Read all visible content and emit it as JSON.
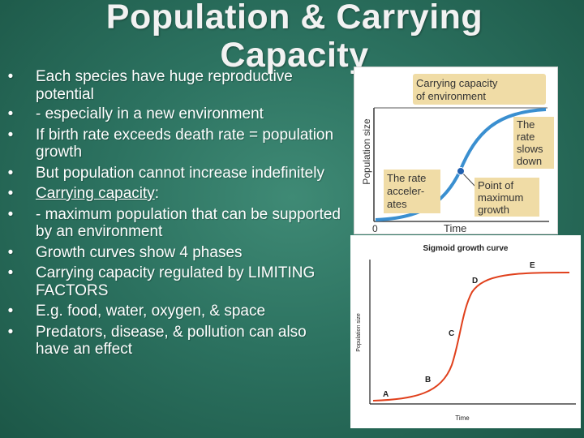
{
  "slide": {
    "title": "Population & Carrying Capacity",
    "bullets": [
      {
        "text": "Each species have huge reproductive potential"
      },
      {
        "text": "- especially in a new environment"
      },
      {
        "text": "If birth rate exceeds death rate = population growth"
      },
      {
        "text": "But population cannot increase indefinitely"
      },
      {
        "text": "Carrying capacity",
        "suffix": ":"
      },
      {
        "text": "- maximum population that can be supported by an environment"
      },
      {
        "text": "Growth curves show 4 phases"
      },
      {
        "text": "Carrying capacity regulated by LIMITING FACTORS"
      },
      {
        "text": "E.g. food, water, oxygen, & space"
      },
      {
        "text": "Predators, disease, & pollution can also have an effect"
      }
    ],
    "bullet_glyph": "•"
  },
  "figure_top": {
    "capacity_label_1": "Carrying capacity",
    "capacity_label_2": "of environment",
    "ylabel": "Population size",
    "xlabel": "Time",
    "origin": "0",
    "slows_1": "The",
    "slows_2": "rate",
    "slows_3": "slows",
    "slows_4": "down",
    "accel_1": "The rate",
    "accel_2": "acceler-",
    "accel_3": "ates",
    "point_1": "Point of",
    "point_2": "maximum",
    "point_3": "growth",
    "colors": {
      "curve": "#3a8fd0",
      "label_bg": "#f0dca6",
      "point": "#1f5fb0"
    }
  },
  "figure_bottom": {
    "title": "Sigmoid growth curve",
    "ylabel": "Population size",
    "xlabel": "Time",
    "phase_a": "A",
    "phase_b": "B",
    "phase_c": "C",
    "phase_d": "D",
    "phase_e": "E",
    "colors": {
      "curve": "#e0401c"
    }
  }
}
